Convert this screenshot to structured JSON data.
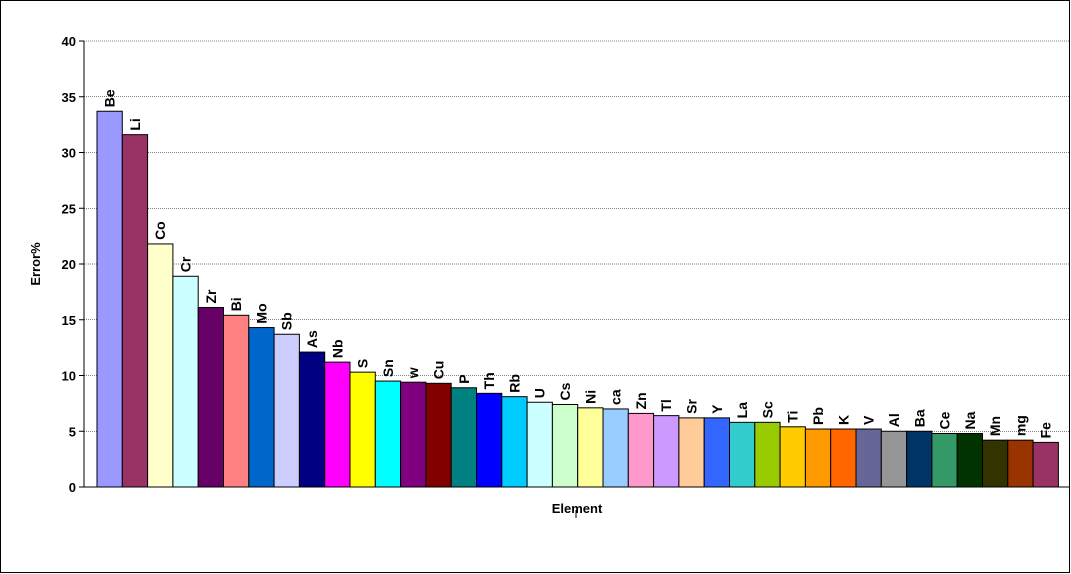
{
  "chart_data": {
    "type": "bar",
    "xlabel": "Element",
    "ylabel": "Error%",
    "ylim": [
      0,
      40
    ],
    "yticks": [
      0,
      5,
      10,
      15,
      20,
      25,
      30,
      35,
      40
    ],
    "grid": "horizontal",
    "data_labels": "above bars, rotated",
    "categories": [
      "Be",
      "Li",
      "Co",
      "Cr",
      "Zr",
      "Bi",
      "Mo",
      "Sb",
      "As",
      "Nb",
      "S",
      "Sn",
      "w",
      "Cu",
      "P",
      "Th",
      "Rb",
      "U",
      "Cs",
      "Ni",
      "ca",
      "Zn",
      "Tl",
      "Sr",
      "Y",
      "La",
      "Sc",
      "Ti",
      "Pb",
      "K",
      "V",
      "Al",
      "Ba",
      "Ce",
      "Na",
      "Mn",
      "mg",
      "Fe"
    ],
    "values": [
      33.7,
      31.6,
      21.8,
      18.9,
      16.1,
      15.4,
      14.3,
      13.7,
      12.1,
      11.2,
      10.3,
      9.5,
      9.4,
      9.3,
      8.9,
      8.4,
      8.1,
      7.6,
      7.4,
      7.1,
      7.0,
      6.6,
      6.4,
      6.2,
      6.2,
      5.8,
      5.8,
      5.4,
      5.2,
      5.2,
      5.2,
      5.0,
      5.0,
      4.8,
      4.8,
      4.2,
      4.2,
      4.0
    ],
    "colors": [
      "#9999ff",
      "#993366",
      "#ffffcc",
      "#ccffff",
      "#660066",
      "#ff8080",
      "#0066cc",
      "#ccccff",
      "#000080",
      "#ff00ff",
      "#ffff00",
      "#00ffff",
      "#800080",
      "#800000",
      "#008080",
      "#0000ff",
      "#00ccff",
      "#ccffff",
      "#ccffcc",
      "#ffff99",
      "#99ccff",
      "#ff99cc",
      "#cc99ff",
      "#ffcc99",
      "#3366ff",
      "#33cccc",
      "#99cc00",
      "#ffcc00",
      "#ff9900",
      "#ff6600",
      "#666699",
      "#969696",
      "#003366",
      "#339966",
      "#003300",
      "#333300",
      "#993300",
      "#993366"
    ]
  }
}
